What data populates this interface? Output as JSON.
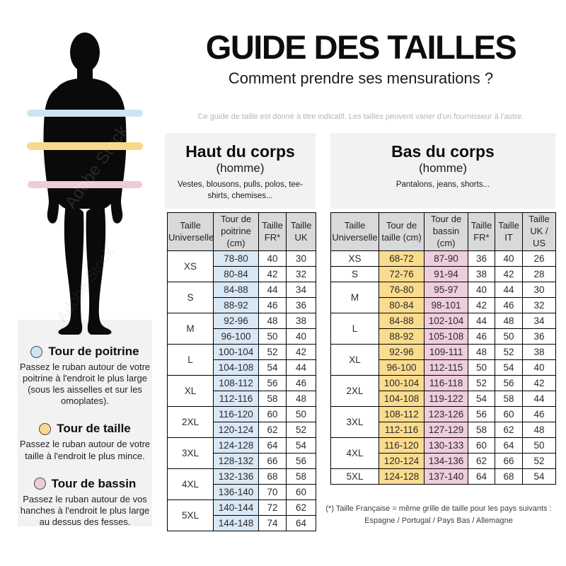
{
  "title": "GUIDE DES TAILLES",
  "subtitle": "Comment prendre ses mensurations ?",
  "disclaimer": "Ce guide de taille est donné à titre indicatif. Les tailles peuvent varier d'un fournisseur à l'autre.",
  "watermark": "Adobe Stock",
  "colors": {
    "chest_band": "#cfe4f1",
    "waist_band": "#f8d98a",
    "hips_band": "#edccd9",
    "chest_cell": "#d9e8f5",
    "waist_cell": "#fbdc8e",
    "hips_cell": "#eecddc",
    "table_header": "#d9d9d9",
    "panel": "#f2f2f2"
  },
  "legend": {
    "items": [
      {
        "label": "Tour de poitrine",
        "description": "Passez le ruban autour de votre poitrine à l'endroit le plus large (sous les aisselles et sur les omoplates)."
      },
      {
        "label": "Tour de taille",
        "description": "Passez le ruban autour de votre taille à l'endroit le plus mince."
      },
      {
        "label": "Tour de bassin",
        "description": "Passez le ruban autour de vos hanches à l'endroit le plus large au dessus des fesses."
      }
    ]
  },
  "upper_table": {
    "title": "Haut du corps",
    "subtitle": "(homme)",
    "description": "Vestes, blousons, pulls, polos, tee-shirts, chemises...",
    "headers": [
      "Taille Universelle",
      "Tour de poitrine (cm)",
      "Taille FR*",
      "Taille UK"
    ],
    "sizes": [
      {
        "size": "XS",
        "rows": [
          [
            "78-80",
            "40",
            "30"
          ],
          [
            "80-84",
            "42",
            "32"
          ]
        ]
      },
      {
        "size": "S",
        "rows": [
          [
            "84-88",
            "44",
            "34"
          ],
          [
            "88-92",
            "46",
            "36"
          ]
        ]
      },
      {
        "size": "M",
        "rows": [
          [
            "92-96",
            "48",
            "38"
          ],
          [
            "96-100",
            "50",
            "40"
          ]
        ]
      },
      {
        "size": "L",
        "rows": [
          [
            "100-104",
            "52",
            "42"
          ],
          [
            "104-108",
            "54",
            "44"
          ]
        ]
      },
      {
        "size": "XL",
        "rows": [
          [
            "108-112",
            "56",
            "46"
          ],
          [
            "112-116",
            "58",
            "48"
          ]
        ]
      },
      {
        "size": "2XL",
        "rows": [
          [
            "116-120",
            "60",
            "50"
          ],
          [
            "120-124",
            "62",
            "52"
          ]
        ]
      },
      {
        "size": "3XL",
        "rows": [
          [
            "124-128",
            "64",
            "54"
          ],
          [
            "128-132",
            "66",
            "56"
          ]
        ]
      },
      {
        "size": "4XL",
        "rows": [
          [
            "132-136",
            "68",
            "58"
          ],
          [
            "136-140",
            "70",
            "60"
          ]
        ]
      },
      {
        "size": "5XL",
        "rows": [
          [
            "140-144",
            "72",
            "62"
          ],
          [
            "144-148",
            "74",
            "64"
          ]
        ]
      }
    ]
  },
  "lower_table": {
    "title": "Bas du corps",
    "subtitle": "(homme)",
    "description": "Pantalons, jeans, shorts...",
    "headers": [
      "Taille Universelle",
      "Tour de taille (cm)",
      "Tour de bassin (cm)",
      "Taille FR*",
      "Taille IT",
      "Taille UK / US"
    ],
    "sizes": [
      {
        "size": "XS",
        "rows": [
          [
            "68-72",
            "87-90",
            "36",
            "40",
            "26"
          ]
        ]
      },
      {
        "size": "S",
        "rows": [
          [
            "72-76",
            "91-94",
            "38",
            "42",
            "28"
          ]
        ]
      },
      {
        "size": "M",
        "rows": [
          [
            "76-80",
            "95-97",
            "40",
            "44",
            "30"
          ],
          [
            "80-84",
            "98-101",
            "42",
            "46",
            "32"
          ]
        ]
      },
      {
        "size": "L",
        "rows": [
          [
            "84-88",
            "102-104",
            "44",
            "48",
            "34"
          ],
          [
            "88-92",
            "105-108",
            "46",
            "50",
            "36"
          ]
        ]
      },
      {
        "size": "XL",
        "rows": [
          [
            "92-96",
            "109-111",
            "48",
            "52",
            "38"
          ],
          [
            "96-100",
            "112-115",
            "50",
            "54",
            "40"
          ]
        ]
      },
      {
        "size": "2XL",
        "rows": [
          [
            "100-104",
            "116-118",
            "52",
            "56",
            "42"
          ],
          [
            "104-108",
            "119-122",
            "54",
            "58",
            "44"
          ]
        ]
      },
      {
        "size": "3XL",
        "rows": [
          [
            "108-112",
            "123-126",
            "56",
            "60",
            "46"
          ],
          [
            "112-116",
            "127-129",
            "58",
            "62",
            "48"
          ]
        ]
      },
      {
        "size": "4XL",
        "rows": [
          [
            "116-120",
            "130-133",
            "60",
            "64",
            "50"
          ],
          [
            "120-124",
            "134-136",
            "62",
            "66",
            "52"
          ]
        ]
      },
      {
        "size": "5XL",
        "rows": [
          [
            "124-128",
            "137-140",
            "64",
            "68",
            "54"
          ]
        ]
      }
    ]
  },
  "footnote": {
    "line1": "(*) Taille Française = même grille de taille pour les pays suivants :",
    "line2": "Espagne / Portugal / Pays Bas / Allemagne"
  }
}
